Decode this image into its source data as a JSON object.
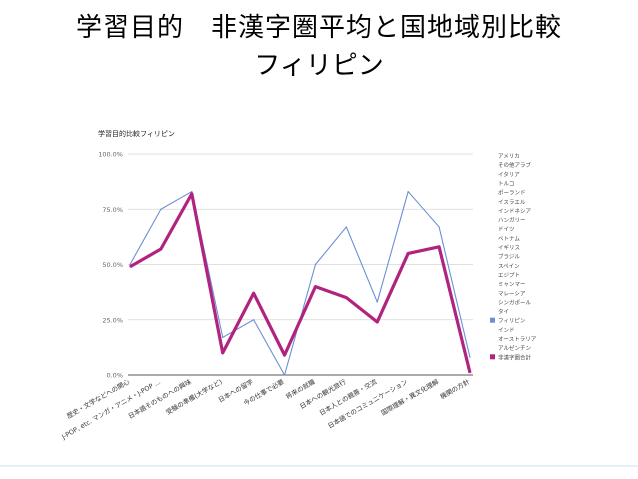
{
  "slide": {
    "title_line1": "学習目的　非漢字圏平均と国地域別比較",
    "title_line2": "フィリピン"
  },
  "chart_data": {
    "type": "line",
    "title": "学習目的比較フィリピン",
    "categories": [
      "歴史・文学などへの関心",
      "J-POP, etc. マンガ・アニメ・J-POP ...",
      "日本語そのものへの興味",
      "受験の準備(大学など)",
      "日本への留学",
      "今の仕事で必要",
      "将来の就職",
      "日本への観光旅行",
      "日本人との親善・交流",
      "日本語でのコミュニケーション",
      "国際理解・異文化理解",
      "機関の方針"
    ],
    "ylim": [
      0,
      100
    ],
    "yticks": [
      "0.0%",
      "25.0%",
      "50.0%",
      "75.0%",
      "100.0%"
    ],
    "grid": true,
    "legend_position": "right",
    "legend": [
      "アメリカ",
      "その他アラブ",
      "イタリア",
      "トルコ",
      "ポーランド",
      "イスラエル",
      "インドネシア",
      "ハンガリー",
      "ドイツ",
      "ベトナム",
      "イギリス",
      "ブラジル",
      "スペイン",
      "エジプト",
      "ミャンマー",
      "マレーシア",
      "シンガポール",
      "タイ",
      "フィリピン",
      "インド",
      "オーストラリア",
      "アルゼンチン",
      "非漢字圏合計"
    ],
    "series": [
      {
        "name": "フィリピン",
        "color": "#6b8fd4",
        "values": [
          50,
          75,
          83,
          17,
          25,
          0,
          50,
          67,
          33,
          83,
          67,
          8
        ]
      },
      {
        "name": "非漢字圏合計",
        "color": "#b0237f",
        "values": [
          49,
          57,
          82,
          10,
          37,
          9,
          40,
          35,
          24,
          55,
          58,
          1
        ]
      }
    ]
  }
}
